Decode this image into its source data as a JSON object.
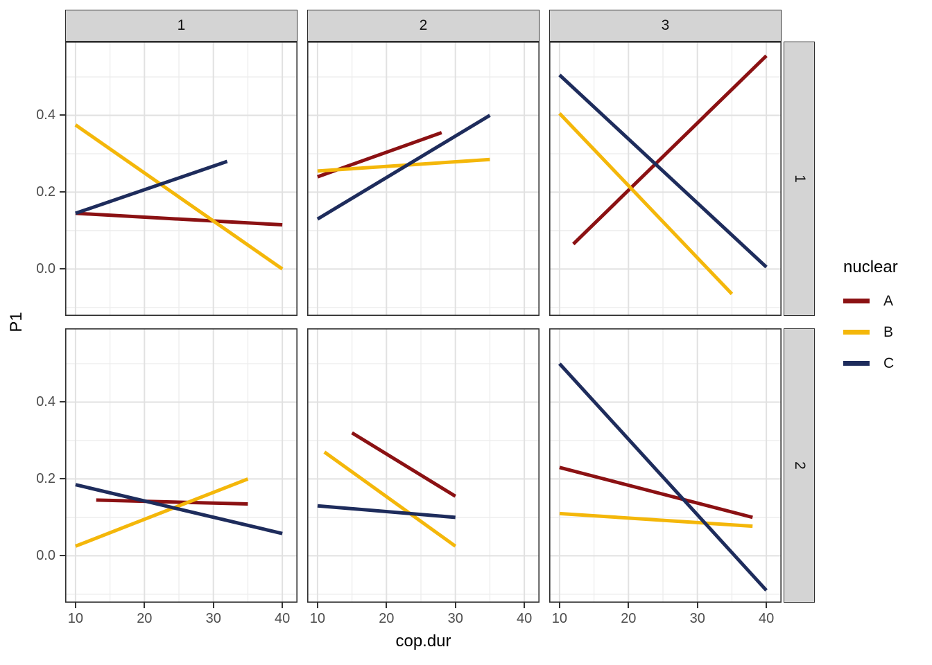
{
  "figure": {
    "xlabel": "cop.dur",
    "ylabel": "P1"
  },
  "chart_data": {
    "type": "line",
    "title": "",
    "xlabel": "cop.dur",
    "ylabel": "P1",
    "faceting": {
      "col_labels": [
        "1",
        "2",
        "3"
      ],
      "row_labels": [
        "1",
        "2"
      ]
    },
    "x_tick_labels": [
      "10",
      "20",
      "30",
      "40"
    ],
    "x_tick_values": [
      10,
      20,
      30,
      40
    ],
    "x_minor_values": [
      15,
      25,
      35
    ],
    "y_tick_labels": [
      "0.0",
      "0.2",
      "0.4"
    ],
    "y_tick_values": [
      0.0,
      0.2,
      0.4
    ],
    "y_minor_values": [
      -0.1,
      0.1,
      0.3,
      0.5
    ],
    "x_domain": [
      8.5,
      42.2
    ],
    "y_domain": [
      -0.122,
      0.592
    ],
    "grid": true,
    "legend": {
      "title": "nuclear",
      "position": "right",
      "entries": [
        {
          "label": "A",
          "color": "#8B1113"
        },
        {
          "label": "B",
          "color": "#F4B70A"
        },
        {
          "label": "C",
          "color": "#1E2C5C"
        }
      ]
    },
    "panels": [
      {
        "col": "1",
        "row": "1",
        "series": [
          {
            "name": "A",
            "x": [
              10,
              40
            ],
            "y": [
              0.145,
              0.115
            ]
          },
          {
            "name": "B",
            "x": [
              10,
              40
            ],
            "y": [
              0.375,
              0.0
            ]
          },
          {
            "name": "C",
            "x": [
              10,
              32
            ],
            "y": [
              0.145,
              0.28
            ]
          }
        ]
      },
      {
        "col": "2",
        "row": "1",
        "series": [
          {
            "name": "A",
            "x": [
              10,
              28
            ],
            "y": [
              0.24,
              0.355
            ]
          },
          {
            "name": "B",
            "x": [
              10,
              35
            ],
            "y": [
              0.255,
              0.285
            ]
          },
          {
            "name": "C",
            "x": [
              10,
              35
            ],
            "y": [
              0.13,
              0.4
            ]
          }
        ]
      },
      {
        "col": "3",
        "row": "1",
        "series": [
          {
            "name": "A",
            "x": [
              12,
              40
            ],
            "y": [
              0.065,
              0.555
            ]
          },
          {
            "name": "B",
            "x": [
              10,
              35
            ],
            "y": [
              0.405,
              -0.065
            ]
          },
          {
            "name": "C",
            "x": [
              10,
              40
            ],
            "y": [
              0.505,
              0.005
            ]
          }
        ]
      },
      {
        "col": "1",
        "row": "2",
        "series": [
          {
            "name": "A",
            "x": [
              13,
              35
            ],
            "y": [
              0.145,
              0.135
            ]
          },
          {
            "name": "B",
            "x": [
              10,
              35
            ],
            "y": [
              0.025,
              0.2
            ]
          },
          {
            "name": "C",
            "x": [
              10,
              40
            ],
            "y": [
              0.185,
              0.058
            ]
          }
        ]
      },
      {
        "col": "2",
        "row": "2",
        "series": [
          {
            "name": "A",
            "x": [
              15,
              30
            ],
            "y": [
              0.32,
              0.155
            ]
          },
          {
            "name": "B",
            "x": [
              11,
              30
            ],
            "y": [
              0.27,
              0.025
            ]
          },
          {
            "name": "C",
            "x": [
              10,
              30
            ],
            "y": [
              0.13,
              0.1
            ]
          }
        ]
      },
      {
        "col": "3",
        "row": "2",
        "series": [
          {
            "name": "A",
            "x": [
              10,
              38
            ],
            "y": [
              0.23,
              0.1
            ]
          },
          {
            "name": "B",
            "x": [
              10,
              38
            ],
            "y": [
              0.11,
              0.077
            ]
          },
          {
            "name": "C",
            "x": [
              10,
              40
            ],
            "y": [
              0.5,
              -0.09
            ]
          }
        ]
      }
    ]
  }
}
